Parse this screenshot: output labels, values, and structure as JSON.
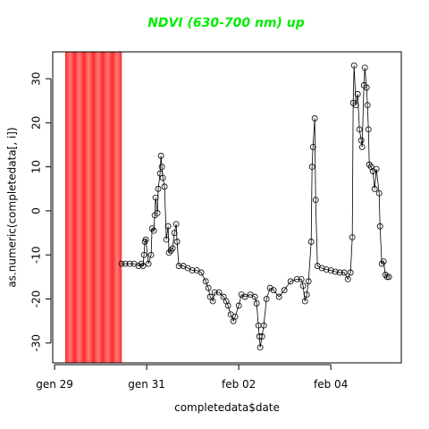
{
  "chart_data": {
    "type": "line",
    "title": "NDVI (630-700 nm) up",
    "title_color": "#00ee00",
    "x_label": "completedata$date",
    "y_label": "as.numeric(completedata[, i])",
    "xlim": [
      -0.04,
      7.53
    ],
    "ylim": [
      -34.5,
      36.1
    ],
    "xticks": [
      {
        "value": 0,
        "label": "gen 29"
      },
      {
        "value": 2,
        "label": "gen 31"
      },
      {
        "value": 4,
        "label": "feb 02"
      },
      {
        "value": 6,
        "label": "feb 04"
      }
    ],
    "yticks": [
      -30,
      -20,
      -10,
      0,
      10,
      20,
      30
    ],
    "highlight": {
      "xlim": [
        0.23,
        1.46
      ],
      "color": "#ff0000"
    },
    "series": [
      {
        "color": "#000000",
        "x": [
          1.456,
          1.534,
          1.631,
          1.728,
          1.825,
          1.883,
          1.922,
          1.942,
          1.961,
          1.981,
          2.039,
          2.097,
          2.117,
          2.155,
          2.175,
          2.194,
          2.233,
          2.252,
          2.291,
          2.311,
          2.33,
          2.35,
          2.388,
          2.427,
          2.466,
          2.485,
          2.524,
          2.563,
          2.602,
          2.641,
          2.66,
          2.699,
          2.796,
          2.893,
          2.99,
          3.087,
          3.184,
          3.282,
          3.34,
          3.379,
          3.437,
          3.476,
          3.573,
          3.67,
          3.728,
          3.767,
          3.825,
          3.883,
          3.922,
          4.0,
          4.058,
          4.136,
          4.252,
          4.35,
          4.388,
          4.427,
          4.447,
          4.466,
          4.505,
          4.544,
          4.602,
          4.68,
          4.757,
          4.874,
          4.99,
          5.126,
          5.262,
          5.359,
          5.398,
          5.437,
          5.476,
          5.515,
          5.573,
          5.592,
          5.612,
          5.65,
          5.67,
          5.709,
          5.806,
          5.903,
          6.0,
          6.097,
          6.194,
          6.291,
          6.369,
          6.427,
          6.466,
          6.485,
          6.505,
          6.544,
          6.583,
          6.621,
          6.66,
          6.68,
          6.718,
          6.738,
          6.777,
          6.796,
          6.816,
          6.835,
          6.874,
          6.913,
          6.951,
          6.99,
          7.049,
          7.068,
          7.107,
          7.146,
          7.184,
          7.223,
          7.262
        ],
        "values": [
          -12,
          -12,
          -12,
          -12,
          -12.5,
          -12,
          -12.5,
          -10,
          -7,
          -6.5,
          -12,
          -10,
          -4,
          -4.5,
          -1,
          3,
          -0.5,
          5,
          8.5,
          12.5,
          10,
          7.5,
          5.5,
          -6.5,
          -3.5,
          -9.5,
          -9,
          -8.5,
          -5,
          -3,
          -7,
          -12.5,
          -12.5,
          -13,
          -13.5,
          -13.5,
          -14,
          -16,
          -17.5,
          -19.5,
          -20.5,
          -18.5,
          -18.5,
          -19.5,
          -20.5,
          -21.5,
          -23.5,
          -25,
          -24,
          -21.5,
          -19,
          -19.5,
          -19,
          -19.5,
          -21,
          -26,
          -28.5,
          -31,
          -28.5,
          -26,
          -20,
          -17.5,
          -18,
          -19.5,
          -18,
          -16,
          -15.5,
          -15.5,
          -17,
          -20.5,
          -19,
          -16,
          -7,
          10,
          14.5,
          21,
          2.5,
          -12.5,
          -13,
          -13.3,
          -13.5,
          -13.8,
          -14,
          -14,
          -15.5,
          -14,
          -6,
          24.5,
          33,
          24,
          26.5,
          18.5,
          16,
          14.5,
          28.5,
          32.5,
          28,
          24,
          18.5,
          10.5,
          10,
          9,
          5,
          9.5,
          4,
          -3.5,
          -12,
          -11.5,
          -14.5,
          -15,
          -15
        ]
      }
    ]
  }
}
